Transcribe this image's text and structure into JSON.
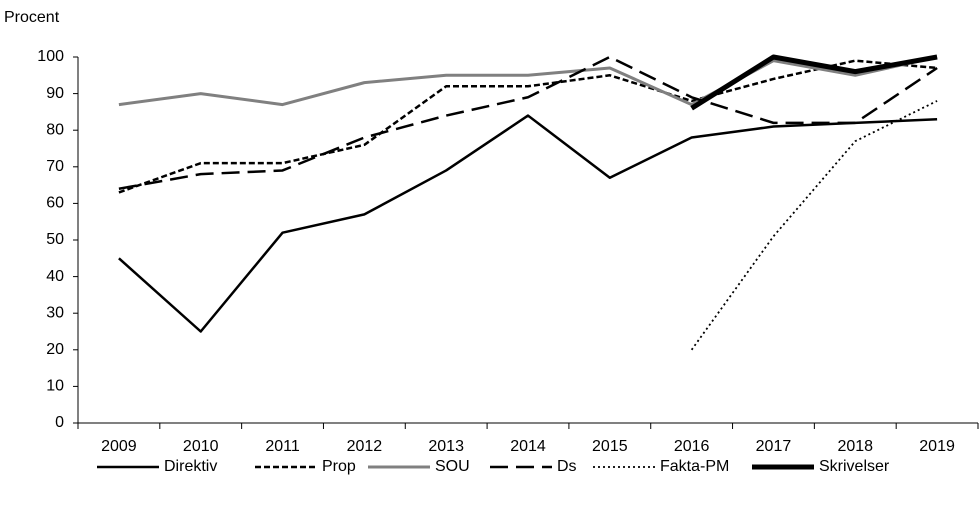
{
  "chart_data": {
    "type": "line",
    "y_label": "Procent",
    "categories": [
      "2009",
      "2010",
      "2011",
      "2012",
      "2013",
      "2014",
      "2015",
      "2016",
      "2017",
      "2018",
      "2019"
    ],
    "series": [
      {
        "name": "Direktiv",
        "color": "#000000",
        "values": [
          45,
          25,
          52,
          57,
          69,
          84,
          67,
          78,
          81,
          82,
          83
        ]
      },
      {
        "name": "Prop",
        "color": "#000000",
        "values": [
          63,
          71,
          71,
          76,
          92,
          92,
          95,
          88,
          94,
          99,
          97
        ]
      },
      {
        "name": "SOU",
        "color": "#808080",
        "values": [
          87,
          90,
          87,
          93,
          95,
          95,
          97,
          87,
          99,
          95,
          100
        ]
      },
      {
        "name": "Ds",
        "color": "#000000",
        "values": [
          64,
          68,
          69,
          78,
          84,
          89,
          100,
          89,
          82,
          82,
          97
        ]
      },
      {
        "name": "Fakta-PM",
        "color": "#000000",
        "values": [
          null,
          null,
          null,
          null,
          null,
          null,
          null,
          20,
          51,
          77,
          88
        ]
      },
      {
        "name": "Skrivelser",
        "color": "#000000",
        "values": [
          null,
          null,
          null,
          null,
          null,
          null,
          null,
          86,
          100,
          96,
          100
        ]
      }
    ],
    "ylim": [
      0,
      100
    ],
    "yticks": [
      0,
      10,
      20,
      30,
      40,
      50,
      60,
      70,
      80,
      90,
      100
    ],
    "grid": false,
    "legend": "bottom"
  }
}
